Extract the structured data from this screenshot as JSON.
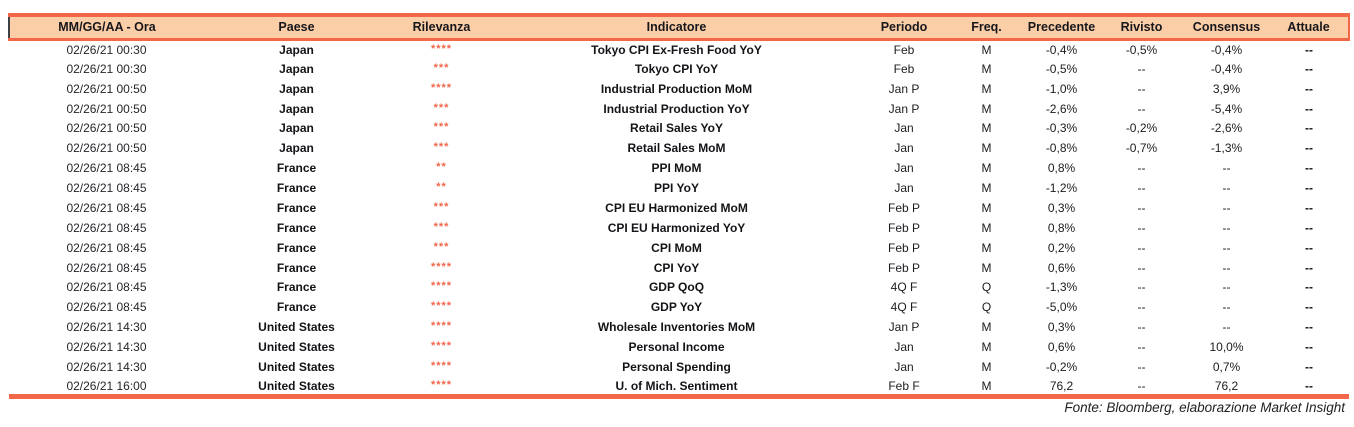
{
  "colors": {
    "accent": "#f2664a",
    "header_bg": "#fbcea8"
  },
  "table": {
    "columns": [
      {
        "key": "time",
        "label": "MM/GG/AA - Ora"
      },
      {
        "key": "country",
        "label": "Paese"
      },
      {
        "key": "relevance",
        "label": "Rilevanza"
      },
      {
        "key": "indicator",
        "label": "Indicatore"
      },
      {
        "key": "period",
        "label": "Periodo"
      },
      {
        "key": "freq",
        "label": "Freq."
      },
      {
        "key": "previous",
        "label": "Precedente"
      },
      {
        "key": "revised",
        "label": "Rivisto"
      },
      {
        "key": "consensus",
        "label": "Consensus"
      },
      {
        "key": "actual",
        "label": "Attuale"
      }
    ],
    "rows": [
      {
        "time": "02/26/21 00:30",
        "country": "Japan",
        "relevance": "****",
        "indicator": "Tokyo CPI Ex-Fresh Food YoY",
        "period": "Feb",
        "freq": "M",
        "previous": "-0,4%",
        "revised": "-0,5%",
        "consensus": "-0,4%",
        "actual": "--"
      },
      {
        "time": "02/26/21 00:30",
        "country": "Japan",
        "relevance": "***",
        "indicator": "Tokyo CPI YoY",
        "period": "Feb",
        "freq": "M",
        "previous": "-0,5%",
        "revised": "--",
        "consensus": "-0,4%",
        "actual": "--"
      },
      {
        "time": "02/26/21 00:50",
        "country": "Japan",
        "relevance": "****",
        "indicator": "Industrial Production MoM",
        "period": "Jan P",
        "freq": "M",
        "previous": "-1,0%",
        "revised": "--",
        "consensus": "3,9%",
        "actual": "--"
      },
      {
        "time": "02/26/21 00:50",
        "country": "Japan",
        "relevance": "***",
        "indicator": "Industrial Production YoY",
        "period": "Jan P",
        "freq": "M",
        "previous": "-2,6%",
        "revised": "--",
        "consensus": "-5,4%",
        "actual": "--"
      },
      {
        "time": "02/26/21 00:50",
        "country": "Japan",
        "relevance": "***",
        "indicator": "Retail Sales YoY",
        "period": "Jan",
        "freq": "M",
        "previous": "-0,3%",
        "revised": "-0,2%",
        "consensus": "-2,6%",
        "actual": "--"
      },
      {
        "time": "02/26/21 00:50",
        "country": "Japan",
        "relevance": "***",
        "indicator": "Retail Sales MoM",
        "period": "Jan",
        "freq": "M",
        "previous": "-0,8%",
        "revised": "-0,7%",
        "consensus": "-1,3%",
        "actual": "--"
      },
      {
        "time": "02/26/21 08:45",
        "country": "France",
        "relevance": "**",
        "indicator": "PPI MoM",
        "period": "Jan",
        "freq": "M",
        "previous": "0,8%",
        "revised": "--",
        "consensus": "--",
        "actual": "--"
      },
      {
        "time": "02/26/21 08:45",
        "country": "France",
        "relevance": "**",
        "indicator": "PPI YoY",
        "period": "Jan",
        "freq": "M",
        "previous": "-1,2%",
        "revised": "--",
        "consensus": "--",
        "actual": "--"
      },
      {
        "time": "02/26/21 08:45",
        "country": "France",
        "relevance": "***",
        "indicator": "CPI EU Harmonized MoM",
        "period": "Feb P",
        "freq": "M",
        "previous": "0,3%",
        "revised": "--",
        "consensus": "--",
        "actual": "--"
      },
      {
        "time": "02/26/21 08:45",
        "country": "France",
        "relevance": "***",
        "indicator": "CPI EU Harmonized YoY",
        "period": "Feb P",
        "freq": "M",
        "previous": "0,8%",
        "revised": "--",
        "consensus": "--",
        "actual": "--"
      },
      {
        "time": "02/26/21 08:45",
        "country": "France",
        "relevance": "***",
        "indicator": "CPI MoM",
        "period": "Feb P",
        "freq": "M",
        "previous": "0,2%",
        "revised": "--",
        "consensus": "--",
        "actual": "--"
      },
      {
        "time": "02/26/21 08:45",
        "country": "France",
        "relevance": "****",
        "indicator": "CPI YoY",
        "period": "Feb P",
        "freq": "M",
        "previous": "0,6%",
        "revised": "--",
        "consensus": "--",
        "actual": "--"
      },
      {
        "time": "02/26/21 08:45",
        "country": "France",
        "relevance": "****",
        "indicator": "GDP QoQ",
        "period": "4Q F",
        "freq": "Q",
        "previous": "-1,3%",
        "revised": "--",
        "consensus": "--",
        "actual": "--"
      },
      {
        "time": "02/26/21 08:45",
        "country": "France",
        "relevance": "****",
        "indicator": "GDP YoY",
        "period": "4Q F",
        "freq": "Q",
        "previous": "-5,0%",
        "revised": "--",
        "consensus": "--",
        "actual": "--"
      },
      {
        "time": "02/26/21 14:30",
        "country": "United States",
        "relevance": "****",
        "indicator": "Wholesale Inventories MoM",
        "period": "Jan P",
        "freq": "M",
        "previous": "0,3%",
        "revised": "--",
        "consensus": "--",
        "actual": "--"
      },
      {
        "time": "02/26/21 14:30",
        "country": "United States",
        "relevance": "****",
        "indicator": "Personal Income",
        "period": "Jan",
        "freq": "M",
        "previous": "0,6%",
        "revised": "--",
        "consensus": "10,0%",
        "actual": "--"
      },
      {
        "time": "02/26/21 14:30",
        "country": "United States",
        "relevance": "****",
        "indicator": "Personal Spending",
        "period": "Jan",
        "freq": "M",
        "previous": "-0,2%",
        "revised": "--",
        "consensus": "0,7%",
        "actual": "--"
      },
      {
        "time": "02/26/21 16:00",
        "country": "United States",
        "relevance": "****",
        "indicator": "U. of Mich. Sentiment",
        "period": "Feb F",
        "freq": "M",
        "previous": "76,2",
        "revised": "--",
        "consensus": "76,2",
        "actual": "--"
      }
    ]
  },
  "footer": {
    "source": "Fonte: Bloomberg, elaborazione Market Insight"
  }
}
